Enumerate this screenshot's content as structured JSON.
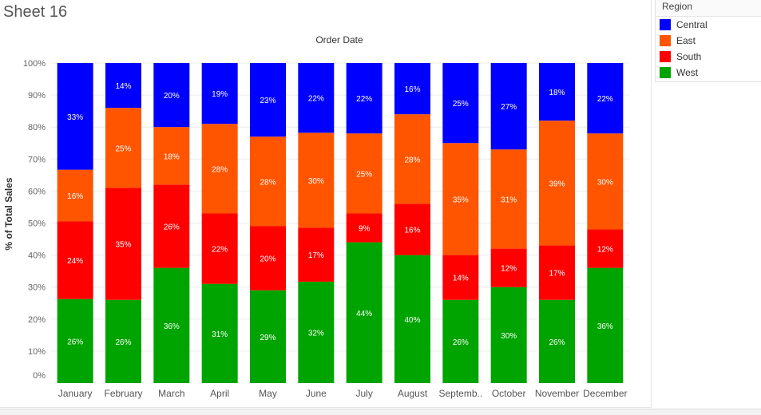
{
  "sheet": {
    "title": "Sheet 16"
  },
  "legend": {
    "title": "Region",
    "items": [
      {
        "label": "Central",
        "color": "#0000ff"
      },
      {
        "label": "East",
        "color": "#ff5500"
      },
      {
        "label": "South",
        "color": "#ff0000"
      },
      {
        "label": "West",
        "color": "#00a400"
      }
    ]
  },
  "chart_data": {
    "type": "bar",
    "stacked": true,
    "percent_stacked": true,
    "title": "Order Date",
    "xlabel": "",
    "ylabel": "% of Total Sales",
    "ylim": [
      0,
      100
    ],
    "yticks": [
      "0%",
      "10%",
      "20%",
      "30%",
      "40%",
      "50%",
      "60%",
      "70%",
      "80%",
      "90%",
      "100%"
    ],
    "categories": [
      "January",
      "February",
      "March",
      "April",
      "May",
      "June",
      "July",
      "August",
      "Septemb..",
      "October",
      "November",
      "December"
    ],
    "grid": true,
    "legend_position": "top-right",
    "series": [
      {
        "name": "West",
        "color": "#00a400",
        "values": [
          26,
          26,
          36,
          31,
          29,
          32,
          44,
          40,
          26,
          30,
          26,
          36
        ],
        "labels": [
          "26%",
          "26%",
          "36%",
          "31%",
          "29%",
          "32%",
          "44%",
          "40%",
          "26%",
          "30%",
          "26%",
          "36%"
        ]
      },
      {
        "name": "South",
        "color": "#ff0000",
        "values": [
          24,
          35,
          26,
          22,
          20,
          17,
          9,
          16,
          14,
          12,
          17,
          12
        ],
        "labels": [
          "24%",
          "35%",
          "26%",
          "22%",
          "20%",
          "17%",
          "9%",
          "16%",
          "14%",
          "12%",
          "17%",
          "12%"
        ]
      },
      {
        "name": "East",
        "color": "#ff5500",
        "values": [
          16,
          25,
          18,
          28,
          28,
          30,
          25,
          28,
          35,
          31,
          39,
          30
        ],
        "labels": [
          "16%",
          "25%",
          "18%",
          "28%",
          "28%",
          "30%",
          "25%",
          "28%",
          "35%",
          "31%",
          "39%",
          "30%"
        ]
      },
      {
        "name": "Central",
        "color": "#0000ff",
        "values": [
          33,
          14,
          20,
          19,
          23,
          22,
          22,
          16,
          25,
          27,
          18,
          22
        ],
        "labels": [
          "33%",
          "14%",
          "20%",
          "19%",
          "23%",
          "22%",
          "22%",
          "16%",
          "25%",
          "27%",
          "18%",
          "22%"
        ]
      }
    ]
  }
}
